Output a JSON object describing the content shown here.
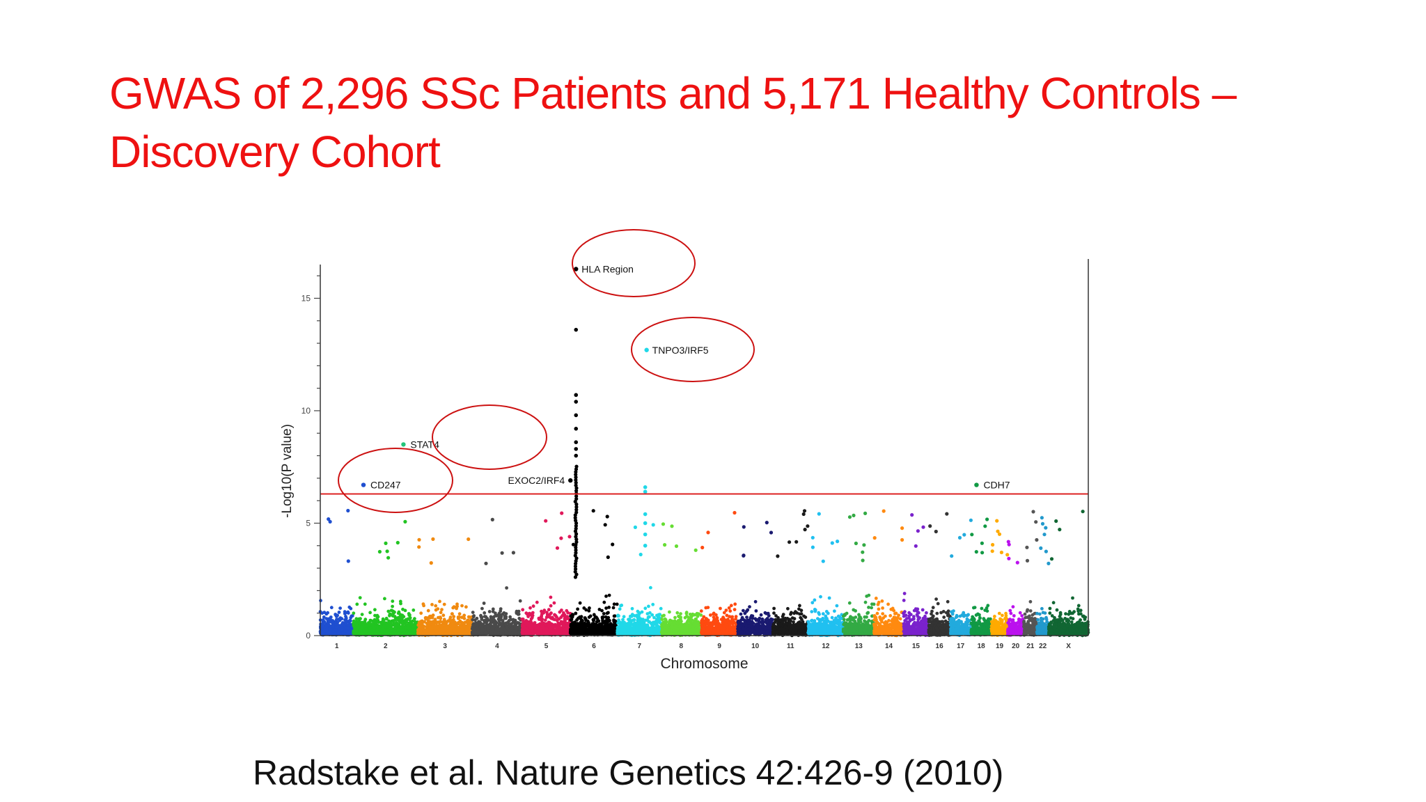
{
  "slide": {
    "title_line1": "GWAS of 2,296 SSc Patients and 5,171 Healthy Controls –",
    "title_line2": "Discovery Cohort",
    "citation": "Radstake et al. Nature Genetics 42:426-9 (2010)"
  },
  "colors": {
    "title": "#ee1111",
    "threshold": "#dd2222",
    "circle": "#cc1111"
  },
  "chart_data": {
    "type": "scatter",
    "subtype": "manhattan",
    "xlabel": "Chromosome",
    "ylabel": "-Log10(P value)",
    "ylim": [
      0,
      16.5
    ],
    "yticks": [
      0,
      5,
      10,
      15
    ],
    "threshold": 6.3,
    "grid": false,
    "chromosomes": [
      {
        "label": "1",
        "color": "#1f4fd0"
      },
      {
        "label": "2",
        "color": "#22c422"
      },
      {
        "label": "3",
        "color": "#f08a10"
      },
      {
        "label": "4",
        "color": "#4a4a4a"
      },
      {
        "label": "5",
        "color": "#e0185a"
      },
      {
        "label": "6",
        "color": "#000000"
      },
      {
        "label": "7",
        "color": "#20d8e8"
      },
      {
        "label": "8",
        "color": "#66dd33"
      },
      {
        "label": "9",
        "color": "#ff4a10"
      },
      {
        "label": "10",
        "color": "#1a1a70"
      },
      {
        "label": "11",
        "color": "#1a1a1a"
      },
      {
        "label": "12",
        "color": "#20c0f0"
      },
      {
        "label": "13",
        "color": "#33aa44"
      },
      {
        "label": "14",
        "color": "#ff8a10"
      },
      {
        "label": "15",
        "color": "#7a22cc"
      },
      {
        "label": "16",
        "color": "#333333"
      },
      {
        "label": "17",
        "color": "#22aadd"
      },
      {
        "label": "18",
        "color": "#119944"
      },
      {
        "label": "19",
        "color": "#ffaa00"
      },
      {
        "label": "20",
        "color": "#bb11ee"
      },
      {
        "label": "21",
        "color": "#555555"
      },
      {
        "label": "22",
        "color": "#2299cc"
      },
      {
        "label": "X",
        "color": "#116633"
      }
    ],
    "annotations": [
      {
        "label": "HLA Region",
        "chromosome": "6",
        "value": 16.3,
        "circled": true
      },
      {
        "label": "TNPO3/IRF5",
        "chromosome": "7",
        "value": 12.7,
        "circled": true
      },
      {
        "label": "STAT4",
        "chromosome": "2",
        "value": 8.5,
        "circled": true
      },
      {
        "label": "CD247",
        "chromosome": "1",
        "value": 6.7,
        "circled": true
      },
      {
        "label": "EXOC2/IRF4",
        "chromosome": "6",
        "value": 6.9,
        "circled": false
      },
      {
        "label": "CDH7",
        "chromosome": "18",
        "value": 6.7,
        "circled": false
      }
    ]
  }
}
